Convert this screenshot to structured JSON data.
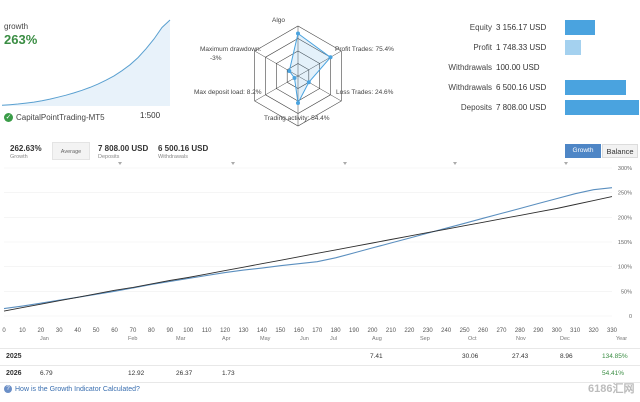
{
  "mini": {
    "label": "growth",
    "value": "263%",
    "curve": [
      2,
      4,
      6,
      9,
      12,
      16,
      21,
      27,
      33,
      40,
      48,
      57,
      67,
      79,
      92,
      108,
      126,
      148,
      175,
      205,
      240,
      263
    ]
  },
  "account": {
    "name": "CapitalPointTrading-MT5",
    "leverage": "1:500"
  },
  "radar": {
    "labels": {
      "algo": "Algo",
      "drawdown": "Maximum drawdown:",
      "drawdown_value": "-3%",
      "profit_trades": "Profit Trades: 75.4%",
      "loss_trades": "Loss Trades: 24.6%",
      "deposit_load": "Max deposit load: 8.2%",
      "activity": "Trading activity: 54.4%"
    },
    "values": {
      "algo": 0.85,
      "profit_trades": 0.75,
      "loss_trades": 0.25,
      "activity": 0.54,
      "deposit_load": 0.08,
      "drawdown": 0.2
    }
  },
  "stats": [
    {
      "label": "Equity",
      "value": "3 156.17 USD",
      "fraction": 0.4
    },
    {
      "label": "Profit",
      "value": "1 748.33 USD",
      "fraction": 0.22
    },
    {
      "label": "Withdrawals",
      "value": "100.00 USD",
      "fraction": 0.0
    },
    {
      "label": "Withdrawals",
      "value": "6 500.16 USD",
      "fraction": 0.83
    },
    {
      "label": "Deposits",
      "value": "7 808.00 USD",
      "fraction": 1.0
    }
  ],
  "summary": {
    "growth_value": "262.63%",
    "growth_label": "Growth",
    "average_label": "Average",
    "deposits_value": "7 808.00 USD",
    "deposits_label": "Deposits",
    "withdrawals_value": "6 500.16 USD",
    "withdrawals_label": "Withdrawals"
  },
  "tabs": {
    "growth": "Growth",
    "balance": "Balance"
  },
  "chart_data": {
    "type": "line",
    "x": [
      0,
      10,
      20,
      30,
      40,
      50,
      60,
      70,
      80,
      90,
      100,
      110,
      120,
      130,
      140,
      150,
      160,
      170,
      180,
      190,
      200,
      210,
      220,
      230,
      240,
      250,
      260,
      270,
      280,
      290,
      300,
      310,
      320,
      330
    ],
    "series": [
      {
        "values": [
          15,
          20,
          26,
          32,
          38,
          44,
          50,
          57,
          64,
          70,
          76,
          82,
          88,
          93,
          97,
          102,
          106,
          110,
          118,
          128,
          138,
          148,
          158,
          168,
          178,
          188,
          198,
          208,
          218,
          228,
          238,
          248,
          256,
          260
        ]
      },
      {
        "values": [
          10,
          17,
          24,
          31,
          38,
          45,
          52,
          58,
          65,
          72,
          78,
          85,
          92,
          99,
          106,
          113,
          120,
          127,
          134,
          141,
          148,
          155,
          162,
          169,
          176,
          183,
          190,
          197,
          204,
          211,
          218,
          226,
          234,
          242
        ]
      }
    ],
    "xlim": [
      0,
      330
    ],
    "ylim": [
      0,
      300
    ],
    "x_ticks": [
      0,
      10,
      20,
      30,
      40,
      50,
      60,
      70,
      80,
      90,
      100,
      110,
      120,
      130,
      140,
      150,
      160,
      170,
      180,
      190,
      200,
      210,
      220,
      230,
      240,
      250,
      260,
      270,
      280,
      290,
      300,
      310,
      320,
      330
    ],
    "y_ticks": [
      "300%",
      "250%",
      "200%",
      "150%",
      "100%",
      "50%",
      "0"
    ],
    "grid": true
  },
  "months": [
    "Jan",
    "Feb",
    "Mar",
    "Apr",
    "May",
    "Jun",
    "Jul",
    "Aug",
    "Sep",
    "Oct",
    "Nov",
    "Dec",
    "Year"
  ],
  "table": [
    {
      "year": "2025",
      "cells": [
        "",
        "",
        "",
        "",
        "",
        "",
        "",
        "7.41",
        "",
        "30.06",
        "27.43",
        "8.96"
      ],
      "total": "134.85%"
    },
    {
      "year": "2026",
      "cells": [
        "6.79",
        "12.92",
        "26.37",
        "1.73",
        "",
        "",
        "",
        "",
        "",
        "",
        "",
        ""
      ],
      "total": "54.41%"
    }
  ],
  "footer": {
    "link": "How is the Growth Indicator Calculated?"
  },
  "watermark": "6186汇网",
  "colors": {
    "accent": "#4aa3df",
    "growth": "#3a8d43",
    "line": "#2f2f2f",
    "trend": "#6fa7cf"
  }
}
